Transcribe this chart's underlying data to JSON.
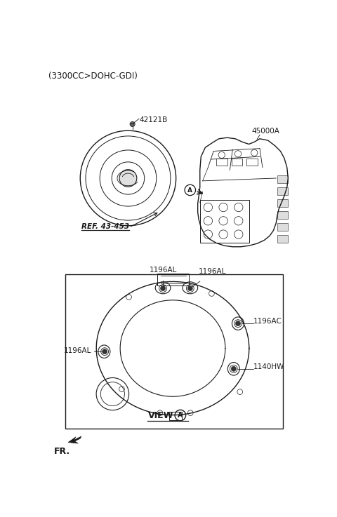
{
  "bg_color": "#ffffff",
  "title_text": "(3300CC>DOHC-GDI)",
  "title_fontsize": 8.5,
  "label_42121B": "42121B",
  "label_45000A": "45000A",
  "label_ref": "REF. 43-453",
  "label_1196AL_1": "1196AL",
  "label_1196AL_2": "1196AL",
  "label_1196AL_3": "1196AL",
  "label_1196AC": "1196AC",
  "label_1140HW": "1140HW",
  "label_fontsize": 7.5,
  "view_text": "VIEW",
  "line_color": "#1a1a1a",
  "line_color2": "#555555"
}
